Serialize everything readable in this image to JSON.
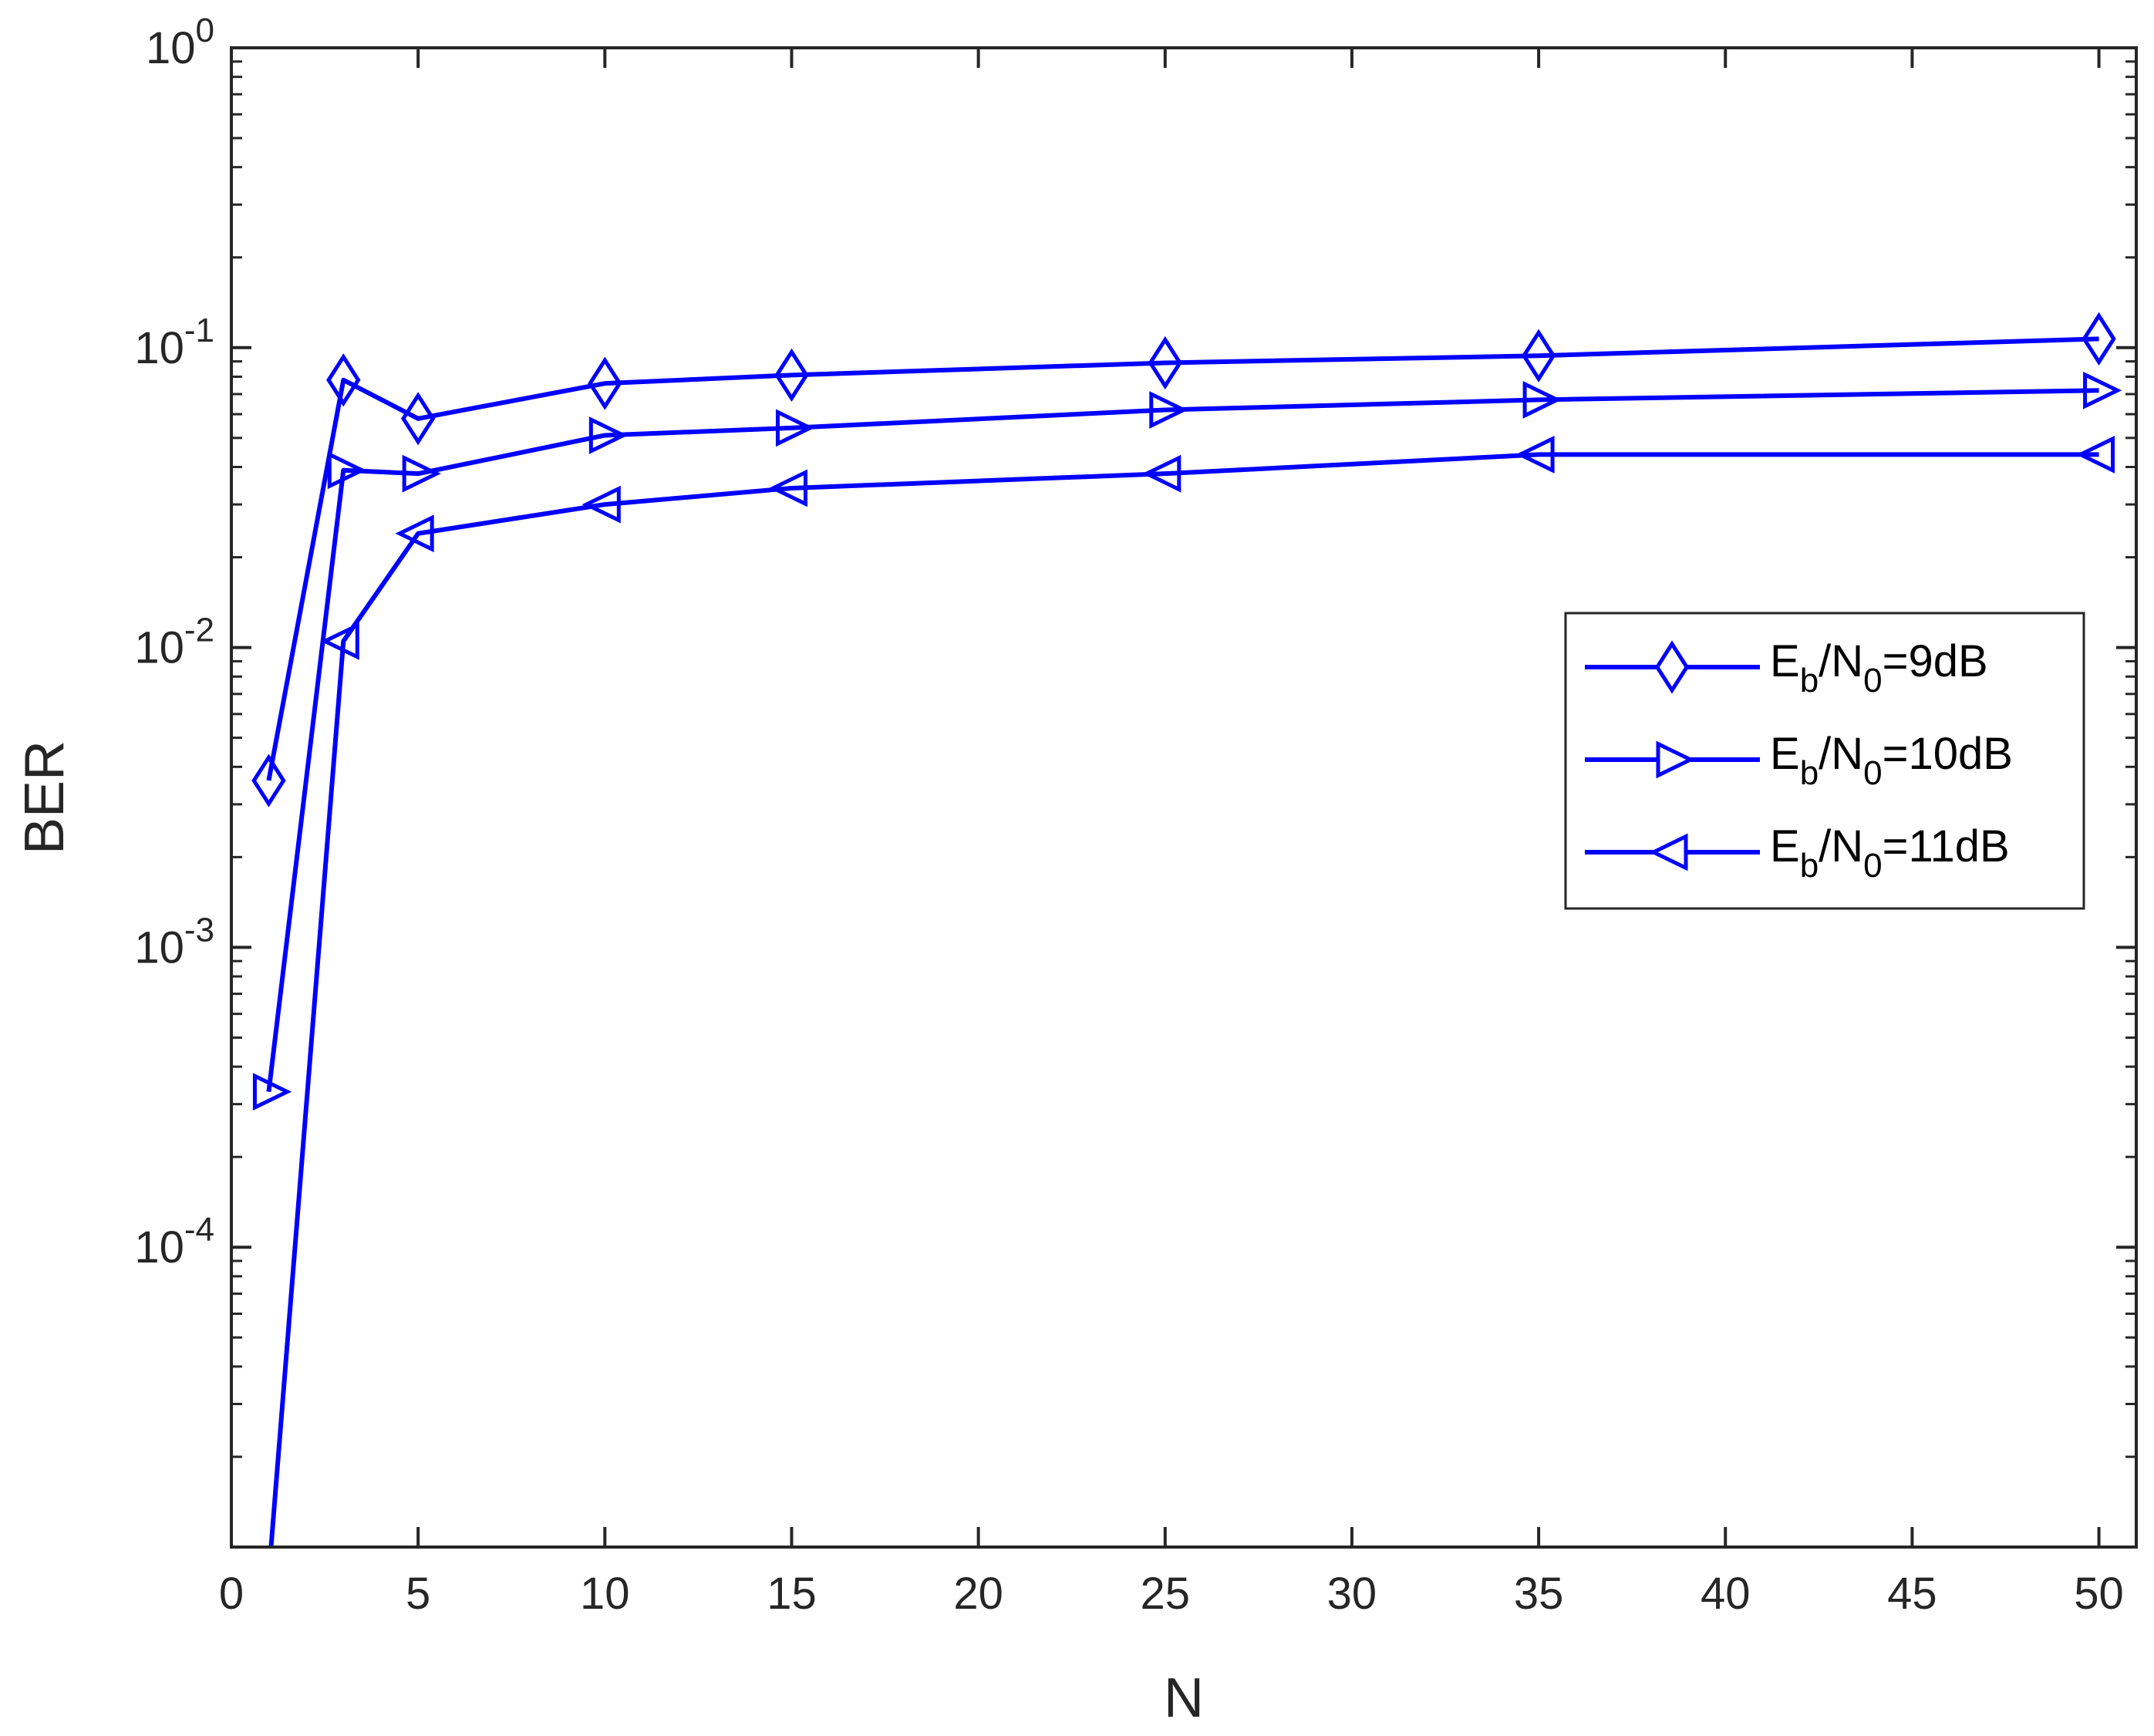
{
  "chart_data": {
    "type": "line",
    "xlabel": "N",
    "ylabel": "BER",
    "xlim": [
      0,
      51
    ],
    "ylim": [
      1e-05,
      1
    ],
    "yscale": "log",
    "x_ticks": [
      0,
      5,
      10,
      15,
      20,
      25,
      30,
      35,
      40,
      45,
      50
    ],
    "y_ticks": [
      {
        "value": 1,
        "base": "10",
        "exp": "0"
      },
      {
        "value": 0.1,
        "base": "10",
        "exp": "-1"
      },
      {
        "value": 0.01,
        "base": "10",
        "exp": "-2"
      },
      {
        "value": 0.001,
        "base": "10",
        "exp": "-3"
      },
      {
        "value": 0.0001,
        "base": "10",
        "exp": "-4"
      }
    ],
    "grid": false,
    "legend_position": "right",
    "series": [
      {
        "name": "Eb/N0=9dB",
        "label_main": "E",
        "label_sub1": "b",
        "label_mid": "/N",
        "label_sub2": "0",
        "label_tail": "=9dB",
        "marker": "diamond",
        "color": "#0000ff",
        "x": [
          1,
          3,
          5,
          10,
          15,
          25,
          35,
          50
        ],
        "y": [
          0.0036,
          0.078,
          0.058,
          0.076,
          0.081,
          0.089,
          0.094,
          0.107
        ]
      },
      {
        "name": "Eb/N0=10dB",
        "label_main": "E",
        "label_sub1": "b",
        "label_mid": "/N",
        "label_sub2": "0",
        "label_tail": "=10dB",
        "marker": "triangle-right",
        "color": "#0000ff",
        "x": [
          1,
          3,
          5,
          10,
          15,
          25,
          35,
          50
        ],
        "y": [
          0.00033,
          0.039,
          0.038,
          0.051,
          0.054,
          0.062,
          0.067,
          0.072
        ]
      },
      {
        "name": "Eb/N0=11dB",
        "label_main": "E",
        "label_sub1": "b",
        "label_mid": "/N",
        "label_sub2": "0",
        "label_tail": "=11dB",
        "marker": "triangle-left",
        "color": "#0000ff",
        "x": [
          1,
          3,
          5,
          10,
          15,
          25,
          35,
          50
        ],
        "y": [
          8e-06,
          0.0105,
          0.024,
          0.03,
          0.034,
          0.038,
          0.044,
          0.044
        ]
      }
    ]
  }
}
